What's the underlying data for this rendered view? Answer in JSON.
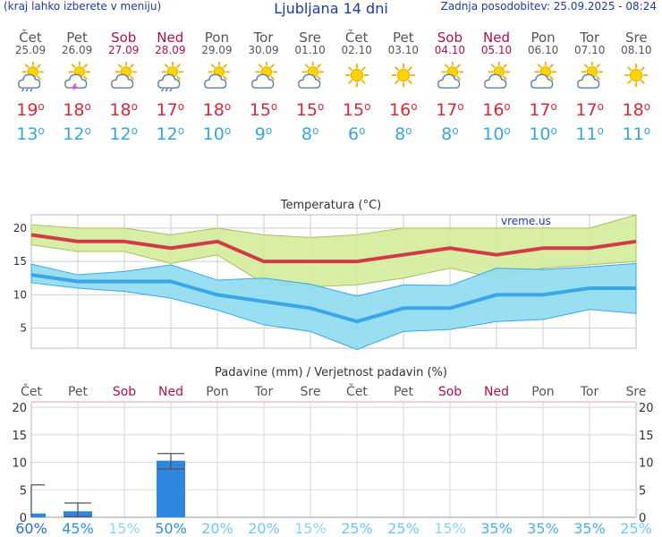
{
  "header": {
    "region_hint": "(kraj lahko izberete v meniju)",
    "title": "Ljubljana 14 dni",
    "updated": "Zadnja posodobitev: 25.09.2025 - 08:24"
  },
  "days": [
    {
      "name": "Čet",
      "date": "25.09",
      "weekend": false,
      "icon": "sun-cloud-rain-icon",
      "tmax": "19",
      "tmin": "13"
    },
    {
      "name": "Pet",
      "date": "26.09",
      "weekend": false,
      "icon": "cloud-thunder-icon",
      "tmax": "18",
      "tmin": "12"
    },
    {
      "name": "Sob",
      "date": "27.09",
      "weekend": true,
      "icon": "sun-cloud-icon",
      "tmax": "18",
      "tmin": "12"
    },
    {
      "name": "Ned",
      "date": "28.09",
      "weekend": true,
      "icon": "sun-cloud-rain-icon",
      "tmax": "17",
      "tmin": "12"
    },
    {
      "name": "Pon",
      "date": "29.09",
      "weekend": false,
      "icon": "sun-cloud-icon",
      "tmax": "18",
      "tmin": "10"
    },
    {
      "name": "Tor",
      "date": "30.09",
      "weekend": false,
      "icon": "sun-cloud-icon",
      "tmax": "15",
      "tmin": "9"
    },
    {
      "name": "Sre",
      "date": "01.10",
      "weekend": false,
      "icon": "sun-cloud-icon",
      "tmax": "15",
      "tmin": "8"
    },
    {
      "name": "Čet",
      "date": "02.10",
      "weekend": false,
      "icon": "sun-icon",
      "tmax": "15",
      "tmin": "6"
    },
    {
      "name": "Pet",
      "date": "03.10",
      "weekend": false,
      "icon": "sun-icon",
      "tmax": "16",
      "tmin": "8"
    },
    {
      "name": "Sob",
      "date": "04.10",
      "weekend": true,
      "icon": "sun-cloud-icon",
      "tmax": "17",
      "tmin": "8"
    },
    {
      "name": "Ned",
      "date": "05.10",
      "weekend": true,
      "icon": "sun-cloud-icon",
      "tmax": "16",
      "tmin": "10"
    },
    {
      "name": "Pon",
      "date": "06.10",
      "weekend": false,
      "icon": "sun-cloud-icon",
      "tmax": "17",
      "tmin": "10"
    },
    {
      "name": "Tor",
      "date": "07.10",
      "weekend": false,
      "icon": "sun-cloud-icon",
      "tmax": "17",
      "tmin": "11"
    },
    {
      "name": "Sre",
      "date": "08.10",
      "weekend": false,
      "icon": "sun-icon",
      "tmax": "18",
      "tmin": "11"
    }
  ],
  "colors": {
    "max_line": "#d13a48",
    "min_line": "#3aa6e8",
    "max_band": "#d4ec9a",
    "min_band": "#8fdcef",
    "weekday": "#555555",
    "weekend": "#b0104a",
    "bar": "#2e86de",
    "grid": "#cccccc"
  },
  "chart_data": [
    {
      "type": "line",
      "title": "Temperatura (°C)",
      "watermark": "vreme.us",
      "x": [
        "25.09",
        "26.09",
        "27.09",
        "28.09",
        "29.09",
        "30.09",
        "01.10",
        "02.10",
        "03.10",
        "04.10",
        "05.10",
        "06.10",
        "07.10",
        "08.10"
      ],
      "ylim": [
        2,
        22
      ],
      "yticks": [
        5,
        10,
        15,
        20
      ],
      "series": [
        {
          "values": [
            19,
            18,
            18,
            17,
            18,
            15,
            15,
            15,
            16,
            17,
            16,
            17,
            17,
            18
          ]
        },
        {
          "values": [
            20.5,
            20,
            20,
            19,
            20,
            19,
            18.6,
            19,
            20,
            20,
            20,
            20,
            20,
            22
          ]
        },
        {
          "values": [
            17.5,
            16.5,
            16.5,
            14.7,
            16,
            11.7,
            11.2,
            11.5,
            12.5,
            14,
            12.5,
            14,
            14.5,
            15
          ]
        },
        {
          "values": [
            13,
            12,
            12,
            12,
            10,
            9,
            8,
            6,
            8,
            8,
            10,
            10,
            11,
            11
          ]
        },
        {
          "values": [
            14.6,
            13,
            13.5,
            14.5,
            12.2,
            12.5,
            11.6,
            9.8,
            11.5,
            11.4,
            14,
            13.8,
            14.2,
            14.7
          ]
        },
        {
          "values": [
            11.8,
            11,
            10.5,
            9.5,
            7.7,
            5.5,
            4.5,
            1.8,
            4.5,
            4.8,
            6,
            6.3,
            7.8,
            7.2
          ]
        }
      ]
    },
    {
      "type": "bar",
      "title": "Padavine (mm) / Verjetnost padavin (%)",
      "categories": [
        "Čet",
        "Pet",
        "Sob",
        "Ned",
        "Pon",
        "Tor",
        "Sre",
        "Čet",
        "Pet",
        "Sob",
        "Ned",
        "Pon",
        "Tor",
        "Sre"
      ],
      "ylim": [
        0,
        21
      ],
      "yticks": [
        0,
        5,
        10,
        15,
        20
      ],
      "values": [
        0.7,
        1.1,
        0,
        10.3,
        0,
        0,
        0,
        0,
        0,
        0,
        0,
        0,
        0,
        0
      ],
      "range_low": [
        0,
        0.1,
        0,
        8.8,
        0,
        0,
        0,
        0,
        0,
        0,
        0,
        0,
        0,
        0
      ],
      "range_high": [
        5.9,
        2.6,
        0,
        11.6,
        0,
        0,
        0,
        0,
        0,
        0,
        0,
        0,
        0,
        0
      ],
      "probability": [
        "60%",
        "45%",
        "15%",
        "50%",
        "20%",
        "20%",
        "15%",
        "25%",
        "25%",
        "15%",
        "35%",
        "35%",
        "35%",
        "25%"
      ]
    }
  ]
}
